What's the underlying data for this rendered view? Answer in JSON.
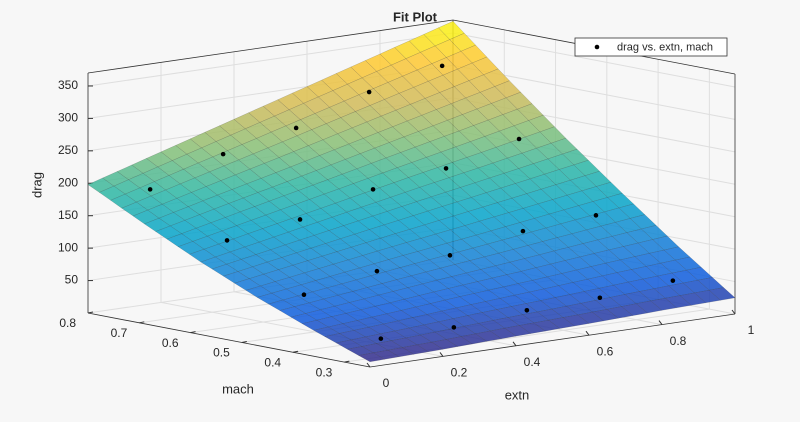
{
  "chart_data": {
    "type": "surface",
    "title": "Fit Plot",
    "xlabel": "extn",
    "ylabel": "mach",
    "zlabel": "drag",
    "x": [
      0,
      0.2,
      0.4,
      0.6,
      0.8,
      1
    ],
    "y": [
      0.25,
      0.36,
      0.47,
      0.58,
      0.69,
      0.8
    ],
    "z": [
      [
        8,
        11,
        15,
        18,
        22,
        25
      ],
      [
        40,
        49,
        59,
        68,
        78,
        87
      ],
      [
        74,
        90,
        106,
        121,
        137,
        153
      ],
      [
        112,
        134,
        156,
        178,
        199,
        221
      ],
      [
        154,
        182,
        209,
        237,
        265,
        293
      ],
      [
        198,
        232,
        266,
        300,
        334,
        368
      ]
    ],
    "colormap": [
      "#352a87",
      "#0f5cdd",
      "#1481d6",
      "#06a4ca",
      "#2eb7a4",
      "#87bf77",
      "#d1bb59",
      "#fec832",
      "#f9fb0e"
    ],
    "xlim": [
      0,
      1
    ],
    "ylim": [
      0.25,
      0.8
    ],
    "zlim": [
      0,
      370
    ],
    "xticks": [
      0,
      0.2,
      0.4,
      0.6,
      0.8,
      1
    ],
    "yticks": [
      0.3,
      0.4,
      0.5,
      0.6,
      0.7,
      0.8
    ],
    "zticks": [
      50,
      100,
      150,
      200,
      250,
      300,
      350
    ],
    "grid": true,
    "legend": "upper right",
    "scatter": {
      "name": "drag vs. extn, mach",
      "color": "#000000",
      "x": [
        0.1,
        0.3,
        0.5,
        0.7,
        0.9,
        0.1,
        0.3,
        0.5,
        0.7,
        0.9,
        0.1,
        0.3,
        0.5,
        0.7,
        0.9,
        0.1,
        0.3,
        0.5,
        0.7,
        0.9
      ],
      "y": [
        0.3,
        0.3,
        0.3,
        0.3,
        0.3,
        0.45,
        0.45,
        0.45,
        0.45,
        0.45,
        0.6,
        0.6,
        0.6,
        0.6,
        0.6,
        0.75,
        0.75,
        0.75,
        0.75,
        0.75
      ],
      "z": [
        28,
        29,
        39,
        42,
        52,
        73,
        93,
        101,
        122,
        130,
        134,
        150,
        180,
        196,
        225,
        190,
        228,
        252,
        291,
        315
      ]
    }
  }
}
